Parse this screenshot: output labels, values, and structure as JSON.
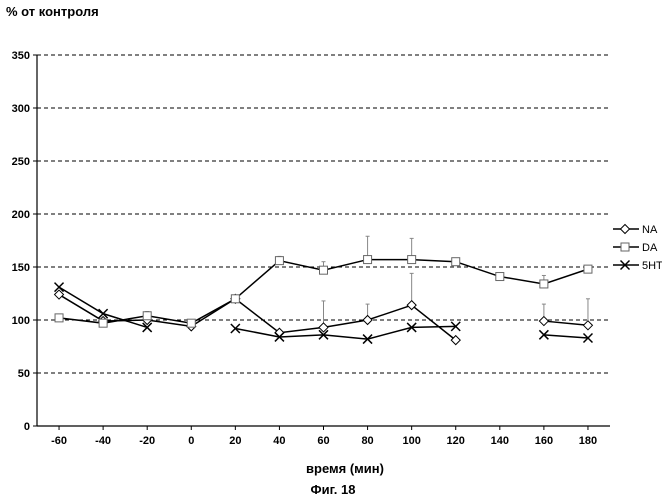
{
  "chart_data": {
    "type": "line",
    "title": "% от контроля",
    "xlabel": "время (мин)",
    "caption": "Фиг. 18",
    "xlim": [
      -70,
      190
    ],
    "ylim": [
      0,
      350
    ],
    "xticks": [
      -60,
      -40,
      -20,
      0,
      20,
      40,
      60,
      80,
      100,
      120,
      140,
      160,
      180
    ],
    "yticks": [
      0,
      50,
      100,
      150,
      200,
      250,
      300,
      350
    ],
    "grid": "horizontal-dashed",
    "legend_position": "right",
    "series": [
      {
        "name": "NA",
        "marker": "diamond",
        "segments": [
          {
            "x": [
              -60,
              -40,
              -20,
              0,
              20,
              40,
              60,
              80,
              100,
              120
            ],
            "y": [
              124,
              99,
              100,
              94,
              120,
              88,
              93,
              100,
              114,
              81
            ],
            "err": [
              0,
              0,
              0,
              0,
              0,
              0,
              25,
              15,
              30,
              0
            ]
          },
          {
            "x": [
              160,
              180
            ],
            "y": [
              99,
              95
            ],
            "err": [
              16,
              25
            ]
          }
        ]
      },
      {
        "name": "DA",
        "marker": "square",
        "segments": [
          {
            "x": [
              -60,
              -40,
              -20,
              0,
              20,
              40,
              60,
              80,
              100,
              120,
              140,
              160,
              180
            ],
            "y": [
              102,
              97,
              104,
              97,
              120,
              156,
              147,
              157,
              157,
              155,
              141,
              134,
              148
            ],
            "err": [
              0,
              0,
              4,
              0,
              0,
              4,
              8,
              22,
              20,
              0,
              0,
              8,
              0
            ]
          }
        ]
      },
      {
        "name": "5HT",
        "marker": "x",
        "segments": [
          {
            "x": [
              -60,
              -40,
              -20
            ],
            "y": [
              131,
              106,
              93
            ],
            "err": [
              0,
              0,
              0
            ]
          },
          {
            "x": [
              20,
              40,
              60,
              80,
              100,
              120
            ],
            "y": [
              92,
              84,
              86,
              82,
              93,
              94
            ],
            "err": [
              0,
              0,
              0,
              0,
              0,
              0
            ]
          },
          {
            "x": [
              160,
              180
            ],
            "y": [
              86,
              83
            ],
            "err": [
              0,
              0
            ]
          }
        ]
      }
    ]
  }
}
